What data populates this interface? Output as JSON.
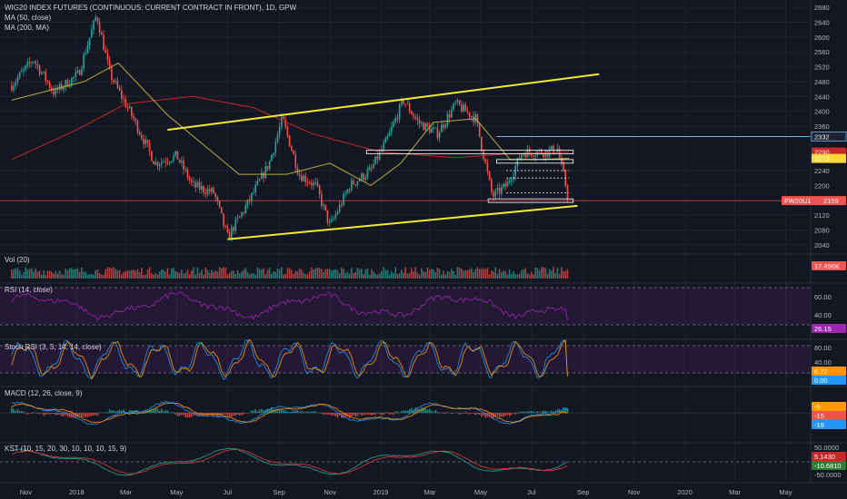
{
  "header": {
    "title": "WIG20 INDEX FUTURES (CONTINUOUS: CURRENT CONTRACT IN FRONT), 1D, GPW",
    "ma50": "MA (50, close)",
    "ma200": "MA (200, MA)"
  },
  "indicators": {
    "vol": "Vol (20)",
    "rsi": "RSI (14, close)",
    "stoch": "Stoch RSI (3, 3, 14, 14, close)",
    "macd": "MACD (12, 26, close, 9)",
    "kst": "KST (10, 15, 20, 30, 10, 10, 10, 15, 9)"
  },
  "x_axis_labels": [
    "Nov",
    "2018",
    "Mar",
    "May",
    "Jul",
    "Sep",
    "Nov",
    "2019",
    "Mar",
    "May",
    "Jul",
    "Sep",
    "Nov",
    "2020",
    "Mar",
    "May"
  ],
  "price_axis_labels": [
    "2680",
    "2640",
    "2600",
    "2560",
    "2520",
    "2480",
    "2440",
    "2400",
    "2360",
    "2240",
    "2200",
    "2120",
    "2080",
    "2040"
  ],
  "rsi_axis_labels": [
    "60.00",
    "40.00"
  ],
  "stoch_axis_labels": [
    "80.00",
    "40.00"
  ],
  "kst_axis_labels": [
    "50.0000",
    "-50.0000"
  ],
  "badges": {
    "price_2332": "2332",
    "price_2290": "2290",
    "price_2273": "2273",
    "fw_label": "FW20U1",
    "fw_value": "2159",
    "volume": "17.496K",
    "rsi": "26.15",
    "stoch_k": "6.72",
    "stoch_d": "0.00",
    "macd_a": "-5",
    "macd_b": "-15",
    "macd_c": "-19",
    "kst_a": "5.1430",
    "kst_b": "-10.6810"
  },
  "colors": {
    "bg": "#131722",
    "up": "#26a69a",
    "down": "#ef5350",
    "ma50": "#b5ad3a",
    "ma200": "#c62828",
    "channel": "#f2e935",
    "rsi": "#9c27b0",
    "stoch_k": "#2196f3",
    "stoch_d": "#ff9800",
    "kst": "#26a69a",
    "kst_sig": "#e53935",
    "fw_line": "#ef5350",
    "line_2332": "#64b5f6"
  },
  "chart_data": {
    "type": "candlestick",
    "title": "WIG20 INDEX FUTURES (CONTINUOUS: CURRENT CONTRACT IN FRONT), 1D, GPW",
    "ylim": [
      2020,
      2700
    ],
    "x_range": [
      "2017-10",
      "2020-05"
    ],
    "price_path": [
      {
        "date": "2017-10-15",
        "price": 2470
      },
      {
        "date": "2017-11-10",
        "price": 2540
      },
      {
        "date": "2017-12-05",
        "price": 2450
      },
      {
        "date": "2018-01-03",
        "price": 2500
      },
      {
        "date": "2018-01-25",
        "price": 2660
      },
      {
        "date": "2018-02-10",
        "price": 2500
      },
      {
        "date": "2018-03-10",
        "price": 2380
      },
      {
        "date": "2018-04-05",
        "price": 2260
      },
      {
        "date": "2018-05-01",
        "price": 2280
      },
      {
        "date": "2018-05-20",
        "price": 2200
      },
      {
        "date": "2018-06-15",
        "price": 2180
      },
      {
        "date": "2018-07-01",
        "price": 2060
      },
      {
        "date": "2018-07-25",
        "price": 2150
      },
      {
        "date": "2018-08-20",
        "price": 2260
      },
      {
        "date": "2018-09-05",
        "price": 2380
      },
      {
        "date": "2018-09-25",
        "price": 2230
      },
      {
        "date": "2018-10-15",
        "price": 2200
      },
      {
        "date": "2018-11-01",
        "price": 2090
      },
      {
        "date": "2018-11-25",
        "price": 2200
      },
      {
        "date": "2018-12-20",
        "price": 2240
      },
      {
        "date": "2019-01-10",
        "price": 2330
      },
      {
        "date": "2019-01-28",
        "price": 2430
      },
      {
        "date": "2019-02-15",
        "price": 2370
      },
      {
        "date": "2019-03-10",
        "price": 2340
      },
      {
        "date": "2019-04-01",
        "price": 2420
      },
      {
        "date": "2019-04-25",
        "price": 2380
      },
      {
        "date": "2019-05-15",
        "price": 2170
      },
      {
        "date": "2019-06-01",
        "price": 2200
      },
      {
        "date": "2019-06-20",
        "price": 2290
      },
      {
        "date": "2019-07-20",
        "price": 2290
      },
      {
        "date": "2019-08-01",
        "price": 2300
      },
      {
        "date": "2019-08-15",
        "price": 2159
      }
    ],
    "ma50_path": [
      {
        "date": "2017-10-15",
        "price": 2430
      },
      {
        "date": "2018-01-10",
        "price": 2480
      },
      {
        "date": "2018-02-20",
        "price": 2530
      },
      {
        "date": "2018-04-20",
        "price": 2390
      },
      {
        "date": "2018-07-15",
        "price": 2230
      },
      {
        "date": "2018-09-10",
        "price": 2230
      },
      {
        "date": "2018-11-01",
        "price": 2260
      },
      {
        "date": "2018-12-20",
        "price": 2200
      },
      {
        "date": "2019-01-25",
        "price": 2260
      },
      {
        "date": "2019-03-05",
        "price": 2370
      },
      {
        "date": "2019-04-25",
        "price": 2380
      },
      {
        "date": "2019-06-05",
        "price": 2270
      },
      {
        "date": "2019-07-10",
        "price": 2270
      },
      {
        "date": "2019-08-15",
        "price": 2273
      }
    ],
    "ma200_path": [
      {
        "date": "2017-10-15",
        "price": 2270
      },
      {
        "date": "2018-01-01",
        "price": 2350
      },
      {
        "date": "2018-03-01",
        "price": 2420
      },
      {
        "date": "2018-05-20",
        "price": 2440
      },
      {
        "date": "2018-08-01",
        "price": 2410
      },
      {
        "date": "2018-10-10",
        "price": 2340
      },
      {
        "date": "2019-01-01",
        "price": 2290
      },
      {
        "date": "2019-04-01",
        "price": 2275
      },
      {
        "date": "2019-06-01",
        "price": 2285
      },
      {
        "date": "2019-08-15",
        "price": 2290
      }
    ],
    "channel_upper": [
      {
        "date": "2018-04-20",
        "price": 2350
      },
      {
        "date": "2019-09-20",
        "price": 2500
      }
    ],
    "channel_lower": [
      {
        "date": "2018-07-01",
        "price": 2055
      },
      {
        "date": "2019-08-25",
        "price": 2145
      }
    ],
    "horizontal_levels": [
      {
        "price": 2332,
        "from": "2019-05-20",
        "to": "2020-05-31",
        "style": "solid-blue"
      },
      {
        "price": 2159,
        "from": "2017-10-01",
        "to": "2020-05-31",
        "style": "solid-red"
      },
      {
        "price": 2290,
        "from": "2018-12-15",
        "to": "2019-08-20",
        "style": "box"
      },
      {
        "price": 2265,
        "from": "2019-05-20",
        "to": "2019-08-20",
        "style": "box"
      },
      {
        "price": 2240,
        "from": "2019-06-01",
        "to": "2019-08-15",
        "style": "dotted"
      },
      {
        "price": 2220,
        "from": "2019-06-01",
        "to": "2019-08-15",
        "style": "dotted"
      },
      {
        "price": 2180,
        "from": "2019-06-01",
        "to": "2019-08-15",
        "style": "dotted"
      },
      {
        "price": 2159,
        "from": "2019-05-10",
        "to": "2019-08-20",
        "style": "box"
      }
    ],
    "last_values": {
      "price": 2159,
      "ma50": 2273,
      "ma200": 2290,
      "volume": "17.496K",
      "rsi": 26.15,
      "stoch_k": 6.72,
      "stoch_d": 0.0,
      "kst": 5.143,
      "kst_signal": -10.681
    },
    "rsi_bands": [
      30,
      70
    ],
    "stoch_bands": [
      20,
      80
    ]
  }
}
